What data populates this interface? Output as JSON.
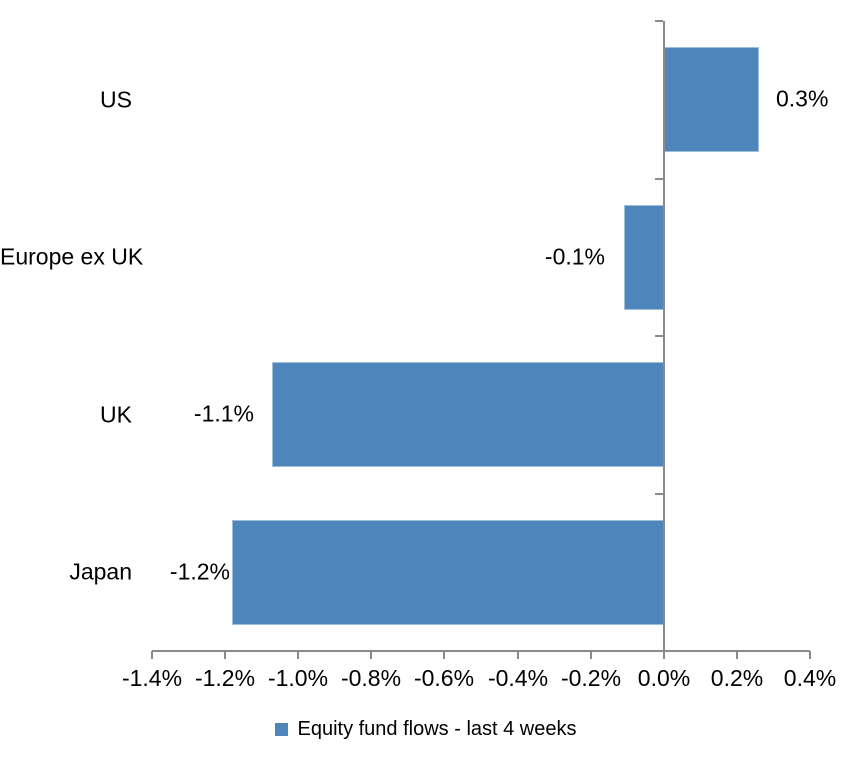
{
  "chart_data": {
    "type": "bar",
    "orientation": "horizontal",
    "title": "",
    "categories": [
      "US",
      "Europe ex UK",
      "UK",
      "Japan"
    ],
    "series": [
      {
        "name": "Equity fund flows - last 4 weeks",
        "values_pct": [
          0.3,
          -0.1,
          -1.1,
          -1.2
        ]
      }
    ],
    "data_labels": [
      "0.3%",
      "-0.1%",
      "-1.1%",
      "-1.2%"
    ],
    "bar_lengths_precise_pct": [
      0.26,
      -0.11,
      -1.07,
      -1.18
    ],
    "x_axis": {
      "xlim": [
        -1.4,
        0.4
      ],
      "tick_step_pct": 0.2,
      "tick_values": [
        -1.4,
        -1.2,
        -1.0,
        -0.8,
        -0.6,
        -0.4,
        -0.2,
        0.0,
        0.2,
        0.4
      ],
      "tick_labels": [
        "-1.4%",
        "-1.2%",
        "-1.0%",
        "-0.8%",
        "-0.6%",
        "-0.4%",
        "-0.2%",
        "0.0%",
        "0.2%",
        "0.4%"
      ]
    },
    "y_axis": {
      "line_at_pct": 0.0,
      "category_boundary_ticks": true
    },
    "legend": {
      "position": "bottom",
      "entries": [
        "Equity fund flows - last 4 weeks"
      ]
    },
    "grid": false,
    "colors": {
      "bar": "#4E86BC",
      "bar_border": "#9FBEDC",
      "axis": "#8A8A8A",
      "text": "#000000",
      "background": "#FFFFFF"
    }
  }
}
